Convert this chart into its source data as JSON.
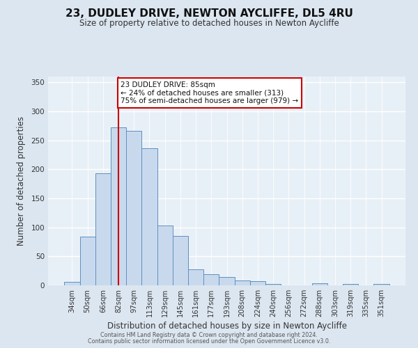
{
  "title": "23, DUDLEY DRIVE, NEWTON AYCLIFFE, DL5 4RU",
  "subtitle": "Size of property relative to detached houses in Newton Aycliffe",
  "xlabel": "Distribution of detached houses by size in Newton Aycliffe",
  "ylabel": "Number of detached properties",
  "categories": [
    "34sqm",
    "50sqm",
    "66sqm",
    "82sqm",
    "97sqm",
    "113sqm",
    "129sqm",
    "145sqm",
    "161sqm",
    "177sqm",
    "193sqm",
    "208sqm",
    "224sqm",
    "240sqm",
    "256sqm",
    "272sqm",
    "288sqm",
    "303sqm",
    "319sqm",
    "335sqm",
    "351sqm"
  ],
  "bar_values": [
    6,
    84,
    193,
    272,
    266,
    236,
    103,
    85,
    28,
    19,
    15,
    8,
    7,
    3,
    0,
    0,
    4,
    0,
    3,
    0,
    3
  ],
  "bar_color": "#c9d9ed",
  "bar_edge_color": "#5e8fc0",
  "vline_x": 3,
  "vline_color": "#cc0000",
  "ylim": [
    0,
    360
  ],
  "yticks": [
    0,
    50,
    100,
    150,
    200,
    250,
    300,
    350
  ],
  "annotation_text": "23 DUDLEY DRIVE: 85sqm\n← 24% of detached houses are smaller (313)\n75% of semi-detached houses are larger (979) →",
  "annotation_box_color": "#ffffff",
  "annotation_box_edge": "#cc0000",
  "footer_line1": "Contains HM Land Registry data © Crown copyright and database right 2024.",
  "footer_line2": "Contains public sector information licensed under the Open Government Licence v3.0.",
  "bg_color": "#dce6f0",
  "plot_bg_color": "#e8f0f7",
  "title_fontsize": 11,
  "subtitle_fontsize": 8.5,
  "tick_fontsize": 7.2,
  "label_fontsize": 8.5,
  "footer_fontsize": 5.8
}
